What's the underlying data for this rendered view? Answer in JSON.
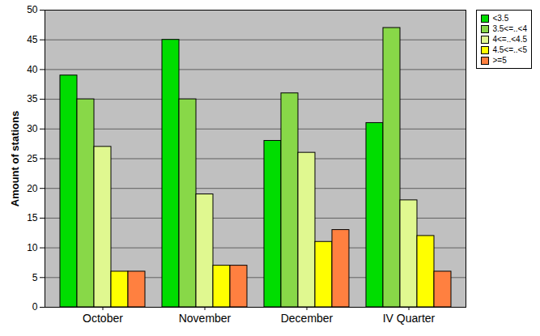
{
  "chart_data": {
    "type": "bar",
    "y_label": "Amount of stations",
    "categories": [
      "October",
      "November",
      "December",
      "IV Quarter"
    ],
    "series": [
      {
        "name": "<3.5",
        "color": "#00dd00",
        "values": [
          39,
          45,
          28,
          31
        ]
      },
      {
        "name": "3.5<=..<4",
        "color": "#88d848",
        "values": [
          35,
          35,
          36,
          47
        ]
      },
      {
        "name": "4<=..<4.5",
        "color": "#e0f890",
        "values": [
          27,
          19,
          26,
          18
        ]
      },
      {
        "name": "4.5<=..<5",
        "color": "#ffff00",
        "values": [
          6,
          7,
          11,
          12
        ]
      },
      {
        "name": ">=5",
        "color": "#ff8040",
        "values": [
          6,
          7,
          13,
          6
        ]
      }
    ],
    "ylim": [
      0,
      50
    ],
    "yticks": [
      0,
      5,
      10,
      15,
      20,
      25,
      30,
      35,
      40,
      45,
      50
    ],
    "grid": true,
    "legend": "top-right"
  }
}
